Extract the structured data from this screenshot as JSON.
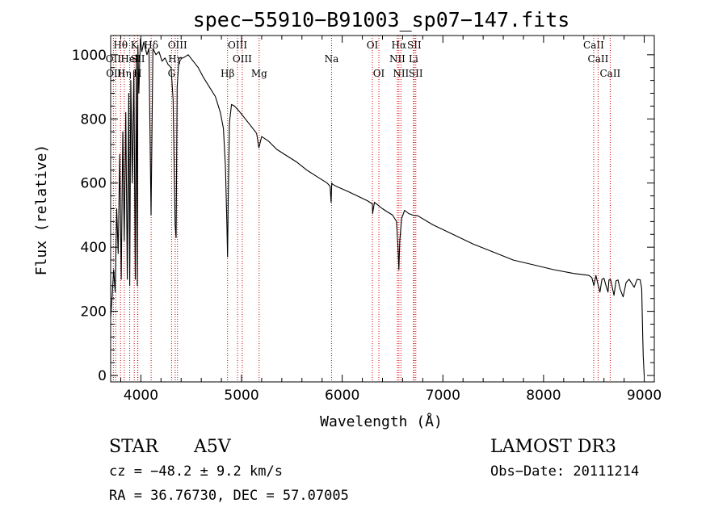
{
  "chart_data": {
    "type": "line",
    "title": "spec−55910−B91003_sp07−147.fits",
    "xlabel": "Wavelength (Å)",
    "ylabel": "Flux (relative)",
    "xlim": [
      3700,
      9100
    ],
    "ylim": [
      -20,
      1060
    ],
    "xticks": [
      4000,
      5000,
      6000,
      7000,
      8000,
      9000
    ],
    "yticks": [
      0,
      200,
      400,
      600,
      800,
      1000
    ],
    "grid": false,
    "series": [
      {
        "name": "flux",
        "x": [
          3700,
          3715,
          3730,
          3745,
          3760,
          3775,
          3790,
          3805,
          3820,
          3835,
          3850,
          3865,
          3880,
          3889,
          3900,
          3915,
          3930,
          3945,
          3955,
          3965,
          3970,
          3980,
          3995,
          4010,
          4030,
          4060,
          4080,
          4101,
          4120,
          4150,
          4180,
          4210,
          4240,
          4270,
          4300,
          4320,
          4340,
          4350,
          4360,
          4380,
          4420,
          4470,
          4520,
          4570,
          4620,
          4680,
          4740,
          4790,
          4820,
          4840,
          4855,
          4861,
          4868,
          4880,
          4900,
          4930,
          4960,
          5000,
          5050,
          5100,
          5150,
          5172,
          5200,
          5270,
          5350,
          5450,
          5550,
          5650,
          5750,
          5850,
          5880,
          5890,
          5896,
          5905,
          5940,
          6050,
          6150,
          6250,
          6300,
          6302,
          6320,
          6400,
          6450,
          6500,
          6540,
          6556,
          6563,
          6572,
          6590,
          6620,
          6660,
          6700,
          6750,
          6900,
          7100,
          7300,
          7500,
          7700,
          7900,
          8100,
          8300,
          8450,
          8480,
          8500,
          8520,
          8540,
          8560,
          8580,
          8600,
          8620,
          8640,
          8650,
          8665,
          8680,
          8700,
          8720,
          8740,
          8760,
          8790,
          8820,
          8850,
          8880,
          8900,
          8930,
          8960,
          8975,
          8985,
          8990,
          9000
        ],
        "values": [
          180,
          250,
          330,
          260,
          520,
          380,
          690,
          300,
          760,
          420,
          820,
          300,
          880,
          280,
          920,
          600,
          950,
          300,
          1000,
          280,
          1030,
          880,
          1050,
          1010,
          1040,
          1000,
          1020,
          500,
          1020,
          1000,
          1010,
          980,
          990,
          970,
          960,
          860,
          470,
          430,
          900,
          990,
          990,
          1000,
          980,
          960,
          930,
          900,
          870,
          820,
          770,
          650,
          470,
          370,
          560,
          790,
          845,
          840,
          830,
          815,
          795,
          775,
          755,
          710,
          745,
          730,
          705,
          685,
          665,
          640,
          620,
          600,
          590,
          540,
          600,
          596,
          590,
          575,
          560,
          545,
          535,
          505,
          540,
          520,
          510,
          500,
          480,
          390,
          330,
          420,
          490,
          515,
          505,
          500,
          498,
          470,
          440,
          410,
          385,
          360,
          345,
          330,
          318,
          312,
          305,
          280,
          312,
          285,
          260,
          300,
          303,
          280,
          260,
          298,
          300,
          278,
          250,
          295,
          298,
          270,
          245,
          290,
          300,
          285,
          275,
          300,
          298,
          270,
          120,
          60,
          0
        ]
      }
    ],
    "line_markers": [
      {
        "name": "Hθ",
        "wavelength": 3798,
        "row": 1
      },
      {
        "name": "OII",
        "wavelength": 3727,
        "row": 2
      },
      {
        "name": "OIII",
        "wavelength": 3750,
        "row": 3
      },
      {
        "name": "Hη",
        "wavelength": 3835,
        "row": 3
      },
      {
        "name": "HeI",
        "wavelength": 3889,
        "row": 2
      },
      {
        "name": "K",
        "wavelength": 3934,
        "row": 1
      },
      {
        "name": "SII",
        "wavelength": 3970,
        "row": 2
      },
      {
        "name": "H",
        "wavelength": 3968,
        "row": 3
      },
      {
        "name": "Hδ",
        "wavelength": 4102,
        "row": 1
      },
      {
        "name": "Hγ",
        "wavelength": 4341,
        "row": 2
      },
      {
        "name": "OIII",
        "wavelength": 4364,
        "row": 1
      },
      {
        "name": "G",
        "wavelength": 4305,
        "row": 3
      },
      {
        "name": "Hβ",
        "wavelength": 4861,
        "row": 3
      },
      {
        "name": "OIII",
        "wavelength": 4960,
        "row": 1
      },
      {
        "name": "OIII",
        "wavelength": 5007,
        "row": 2
      },
      {
        "name": "Mg",
        "wavelength": 5175,
        "row": 3
      },
      {
        "name": "Na",
        "wavelength": 5894,
        "row": 2
      },
      {
        "name": "OI",
        "wavelength": 6300,
        "row": 1
      },
      {
        "name": "OI",
        "wavelength": 6364,
        "row": 3
      },
      {
        "name": "Hα",
        "wavelength": 6563,
        "row": 1
      },
      {
        "name": "NII",
        "wavelength": 6548,
        "row": 2
      },
      {
        "name": "NII",
        "wavelength": 6583,
        "row": 3
      },
      {
        "name": "SII",
        "wavelength": 6716,
        "row": 1
      },
      {
        "name": "Li",
        "wavelength": 6708,
        "row": 2
      },
      {
        "name": "SII",
        "wavelength": 6731,
        "row": 3
      },
      {
        "name": "CaII",
        "wavelength": 8498,
        "row": 1
      },
      {
        "name": "CaII",
        "wavelength": 8542,
        "row": 2
      },
      {
        "name": "CaII",
        "wavelength": 8662,
        "row": 3
      }
    ],
    "marker_color": "#cc0000"
  },
  "info": {
    "class": "STAR",
    "subclass": "A5V",
    "survey": "LAMOST DR3",
    "redshift": "cz = −48.2 ± 9.2 km/s",
    "obs_date": "Obs−Date: 20111214",
    "coords": "RA =  36.76730, DEC =  57.07005"
  }
}
